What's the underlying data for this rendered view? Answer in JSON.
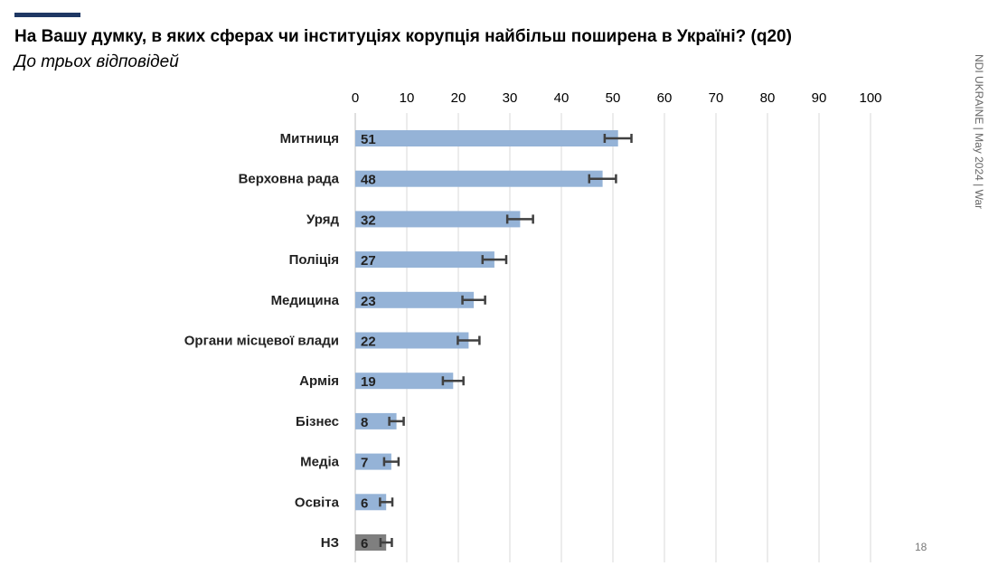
{
  "header": {
    "title": "На Вашу думку, в яких сферах чи інституціях корупція найбільш поширена в Україні? (q20)",
    "subtitle": "До трьох відповідей"
  },
  "side_label": "NDI UKRAINE | May 2024 | War",
  "page_number": "18",
  "chart_data": {
    "type": "bar",
    "orientation": "horizontal",
    "categories": [
      "Митниця",
      "Верховна рада",
      "Уряд",
      "Поліція",
      "Медицина",
      "Органи місцевої влади",
      "Армія",
      "Бізнес",
      "Медіа",
      "Освіта",
      "НЗ"
    ],
    "values": [
      51,
      48,
      32,
      27,
      23,
      22,
      19,
      8,
      7,
      6,
      6
    ],
    "data_labels": [
      "51",
      "48",
      "32",
      "27",
      "23",
      "22",
      "19",
      "8",
      "7",
      "6",
      "6"
    ],
    "error_margin": [
      2.6,
      2.6,
      2.5,
      2.3,
      2.2,
      2.1,
      2.0,
      1.4,
      1.4,
      1.2,
      1.1
    ],
    "xlim": [
      0,
      100
    ],
    "xticks": [
      "0",
      "10",
      "20",
      "30",
      "40",
      "50",
      "60",
      "70",
      "80",
      "90",
      "100"
    ],
    "axis_position": "top",
    "grid": true,
    "colors": {
      "bar": "#95b3d7",
      "bar_last": "#7f7f7f",
      "error": "#404040",
      "grid": "#d9d9d9"
    }
  }
}
